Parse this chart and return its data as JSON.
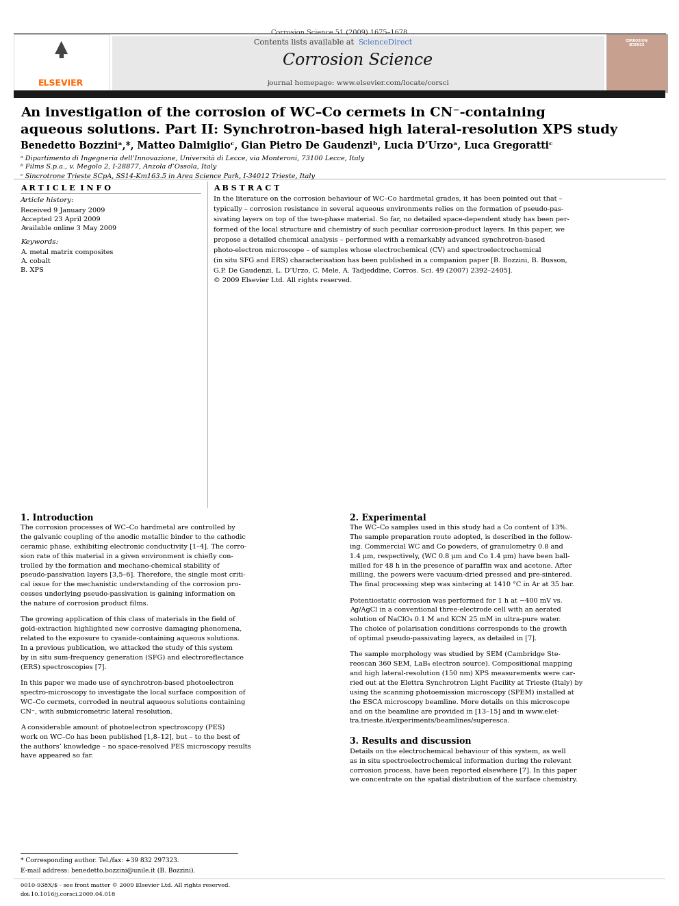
{
  "page_width": 9.92,
  "page_height": 13.23,
  "bg_color": "#ffffff",
  "journal_citation": "Corrosion Science 51 (2009) 1675–1678",
  "header_bg": "#e8e8e8",
  "contents_line": "Contents lists available at ScienceDirect",
  "sciencedirect_color": "#4472c4",
  "journal_name": "Corrosion Science",
  "homepage_line": "journal homepage: www.elsevier.com/locate/corsci",
  "elsevier_color": "#FF6600",
  "elsevier_text": "ELSEVIER",
  "dark_bar_color": "#1a1a1a",
  "title_line1": "An investigation of the corrosion of WC–Co cermets in CN⁻-containing",
  "title_line2": "aqueous solutions. Part II: Synchrotron-based high lateral-resolution XPS study",
  "authors": "Benedetto Bozziniᵃ,*, Matteo Dalmiglioᶜ, Gian Pietro De Gaudenziᵇ, Lucia D’Urzoᵃ, Luca Gregorattiᶜ",
  "affil_a": "ᵃ Dipartimento di Ingegneria dell’Innovazione, Università di Lecce, via Monteroni, 73100 Lecce, Italy",
  "affil_b": "ᵇ Films S.p.a., v. Megolo 2, I-28877, Anzola d’Ossola, Italy",
  "affil_c": "ᶜ Sincrotrone Trieste SCpA, SS14-Km163.5 in Area Science Park, I-34012 Trieste, Italy",
  "article_info_title": "A R T I C L E  I N F O",
  "abstract_title": "A B S T R A C T",
  "article_history_label": "Article history:",
  "received": "Received 9 January 2009",
  "accepted": "Accepted 23 April 2009",
  "available": "Available online 3 May 2009",
  "keywords_label": "Keywords:",
  "kw1": "A. metal matrix composites",
  "kw2": "A. cobalt",
  "kw3": "B. XPS",
  "intro_title": "1. Introduction",
  "exp_title": "2. Experimental",
  "results_title": "3. Results and discussion",
  "footnote_star": "* Corresponding author. Tel./fax: +39 832 297323.",
  "footnote_email": "E-mail address: benedetto.bozzini@unile.it (B. Bozzini).",
  "footer_line1": "0010-938X/$ - see front matter © 2009 Elsevier Ltd. All rights reserved.",
  "footer_line2": "doi:10.1016/j.corsci.2009.04.018",
  "link_color": "#4472c4"
}
